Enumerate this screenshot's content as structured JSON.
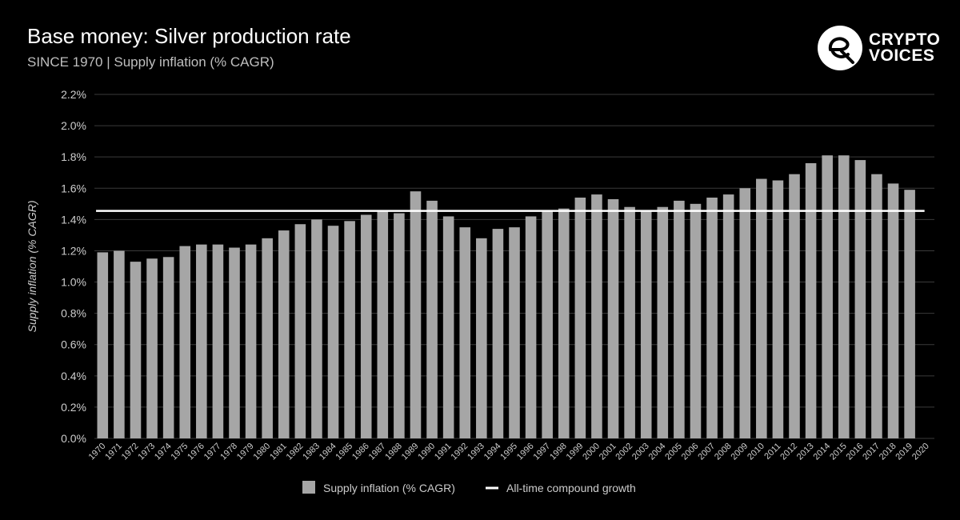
{
  "header": {
    "title": "Base money: Silver production rate",
    "subtitle": "SINCE 1970 | Supply inflation (% CAGR)"
  },
  "brand": {
    "line1": "CRYPTO",
    "line2": "VOICES",
    "icon": "crypto-voices-logo-icon"
  },
  "colors": {
    "background": "#000000",
    "bar": "#a6a6a6",
    "line": "#ffffff",
    "grid": "#3a3a3a",
    "text": "#cccccc"
  },
  "chart_data": {
    "type": "bar",
    "ylabel": "Supply inflation (% CAGR)",
    "ylim": [
      0,
      2.2
    ],
    "yticks": [
      0,
      0.2,
      0.4,
      0.6,
      0.8,
      1.0,
      1.2,
      1.4,
      1.6,
      1.8,
      2.0,
      2.2
    ],
    "ytick_labels": [
      "0.0%",
      "0.2%",
      "0.4%",
      "0.6%",
      "0.8%",
      "1.0%",
      "1.2%",
      "1.4%",
      "1.6%",
      "1.8%",
      "2.0%",
      "2.2%"
    ],
    "grid": true,
    "legend_position": "bottom",
    "categories": [
      "1970",
      "1971",
      "1972",
      "1973",
      "1974",
      "1975",
      "1976",
      "1977",
      "1978",
      "1979",
      "1980",
      "1981",
      "1982",
      "1983",
      "1984",
      "1985",
      "1986",
      "1987",
      "1988",
      "1989",
      "1990",
      "1991",
      "1992",
      "1993",
      "1994",
      "1995",
      "1996",
      "1997",
      "1998",
      "1999",
      "2000",
      "2001",
      "2002",
      "2003",
      "2004",
      "2005",
      "2006",
      "2007",
      "2008",
      "2009",
      "2010",
      "2011",
      "2012",
      "2013",
      "2014",
      "2015",
      "2016",
      "2017",
      "2018",
      "2019",
      "2020"
    ],
    "series": [
      {
        "name": "Supply inflation (% CAGR)",
        "type": "bar",
        "values": [
          1.19,
          1.2,
          1.13,
          1.15,
          1.16,
          1.23,
          1.24,
          1.24,
          1.22,
          1.24,
          1.28,
          1.33,
          1.37,
          1.4,
          1.36,
          1.39,
          1.43,
          1.46,
          1.44,
          1.58,
          1.52,
          1.42,
          1.35,
          1.28,
          1.34,
          1.35,
          1.42,
          1.46,
          1.47,
          1.54,
          1.56,
          1.53,
          1.48,
          1.46,
          1.48,
          1.52,
          1.5,
          1.54,
          1.56,
          1.6,
          1.66,
          1.65,
          1.69,
          1.76,
          1.81,
          1.81,
          1.78,
          1.69,
          1.63,
          1.59,
          null
        ]
      },
      {
        "name": "All-time compound growth",
        "type": "line",
        "value": 1.455
      }
    ]
  }
}
